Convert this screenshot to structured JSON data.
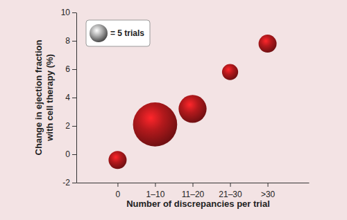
{
  "chart_data": {
    "type": "bubble",
    "x_label": "Number of discrepancies per trial",
    "y_label": [
      "Change in ejection fraction",
      "with cell therapy (%)"
    ],
    "categories": [
      "0",
      "1–10",
      "11–20",
      "21–30",
      ">30"
    ],
    "values": [
      -0.4,
      2.1,
      3.2,
      5.8,
      7.8
    ],
    "sizes": [
      5,
      30,
      12,
      4,
      5
    ],
    "size_legend": {
      "value": 5,
      "label": "= 5 trials"
    },
    "color": "#b3191c",
    "ylim": [
      -2,
      10
    ],
    "yticks": [
      -2,
      0,
      2,
      4,
      6,
      8,
      10
    ]
  }
}
